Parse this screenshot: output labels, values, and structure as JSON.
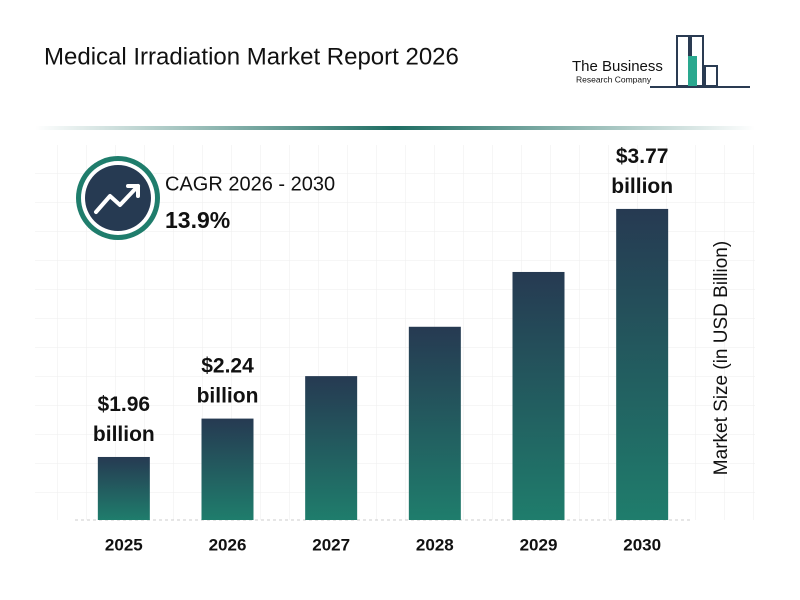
{
  "chart_data": {
    "type": "bar",
    "title": "Medical Irradiation Market Report 2026",
    "logo": [
      "The Business",
      "Research Company"
    ],
    "cagr_label": "CAGR 2026 - 2030",
    "cagr_value": "13.9%",
    "y_label": "Market Size (in USD Billion)",
    "categories": [
      "2025",
      "2026",
      "2027",
      "2028",
      "2029",
      "2030"
    ],
    "values": [
      1.96,
      2.24,
      2.55,
      2.91,
      3.31,
      3.77
    ],
    "value_labels": [
      "$1.96 billion",
      "$2.24 billion",
      null,
      null,
      null,
      "$3.77 billion"
    ],
    "gradient": [
      "#263a52",
      "#1f7d6c"
    ],
    "ylim": [
      1.5,
      4.2
    ]
  }
}
